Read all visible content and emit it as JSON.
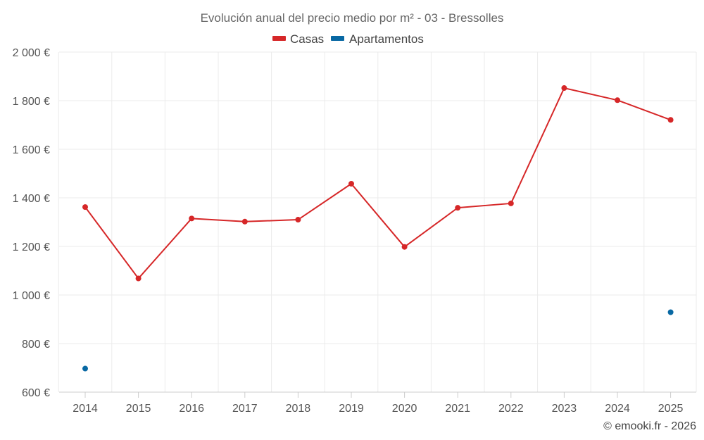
{
  "chart_data": {
    "type": "line",
    "title": "Evolución anual del precio medio por m² - 03 - Bressolles",
    "categories": [
      "2014",
      "2015",
      "2016",
      "2017",
      "2018",
      "2019",
      "2020",
      "2021",
      "2022",
      "2023",
      "2024",
      "2025"
    ],
    "y_ticks": [
      "600 €",
      "800 €",
      "1 000 €",
      "1 200 €",
      "1 400 €",
      "1 600 €",
      "1 800 €",
      "2 000 €"
    ],
    "y_tick_values": [
      600,
      800,
      1000,
      1200,
      1400,
      1600,
      1800,
      2000
    ],
    "ylim": [
      600,
      2000
    ],
    "grid": true,
    "legend_position": "top-center",
    "series": [
      {
        "name": "Casas",
        "color": "#d62728",
        "line": true,
        "values": [
          1362,
          1068,
          1315,
          1302,
          1310,
          1458,
          1198,
          1359,
          1377,
          1852,
          1802,
          1721
        ]
      },
      {
        "name": "Apartamentos",
        "color": "#0868a3",
        "line": false,
        "values": [
          697,
          null,
          null,
          null,
          null,
          null,
          null,
          null,
          null,
          null,
          null,
          929
        ]
      }
    ]
  },
  "credit": "© emooki.fr - 2026"
}
